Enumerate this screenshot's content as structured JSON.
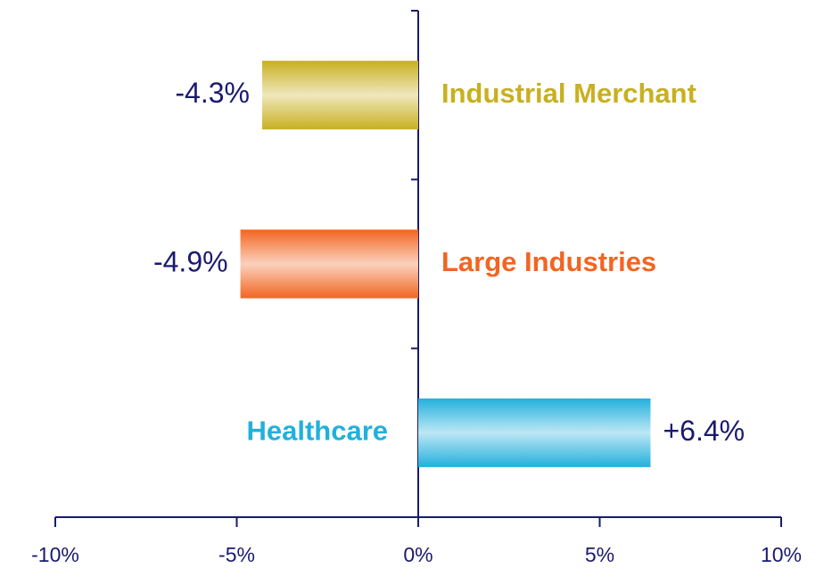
{
  "chart_data": {
    "type": "barh",
    "categories": [
      "Industrial Merchant",
      "Large Industries",
      "Healthcare"
    ],
    "values": [
      -4.3,
      -4.9,
      6.4
    ],
    "value_labels": [
      "-4.3%",
      "-4.9%",
      "+6.4%"
    ],
    "colors": [
      "#c8b020",
      "#f26522",
      "#22b0dc"
    ],
    "xlim": [
      -10,
      10
    ],
    "xticks": [
      {
        "value": -10,
        "label": "-10%"
      },
      {
        "value": -5,
        "label": "-5%"
      },
      {
        "value": 0,
        "label": "0%"
      },
      {
        "value": 5,
        "label": "5%"
      },
      {
        "value": 10,
        "label": "10%"
      }
    ]
  }
}
